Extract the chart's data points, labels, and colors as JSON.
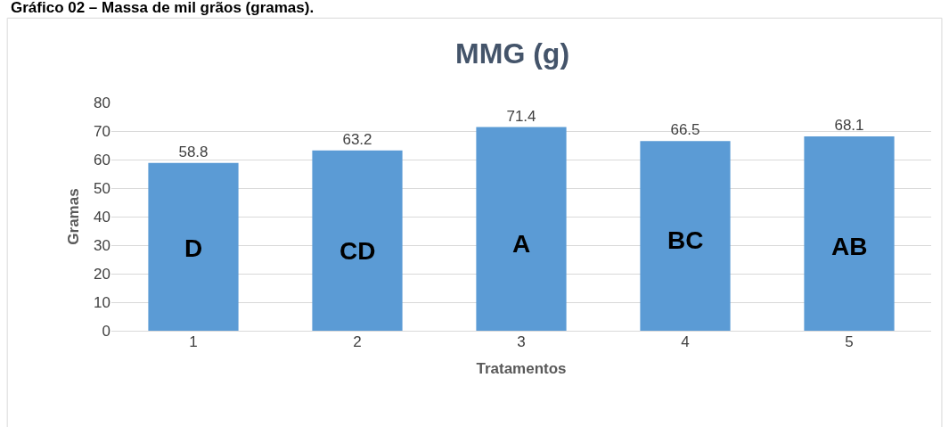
{
  "chart_data": {
    "type": "bar",
    "title": "MMG (g)",
    "xlabel": "Tratamentos",
    "ylabel": "Gramas",
    "categories": [
      "1",
      "2",
      "3",
      "4",
      "5"
    ],
    "values": [
      58.8,
      63.2,
      71.4,
      66.5,
      68.1
    ],
    "color": "#5b9bd5",
    "ylim": [
      0,
      80
    ],
    "yticks": [
      0,
      10,
      20,
      30,
      40,
      50,
      60,
      70,
      80
    ],
    "grid": "y",
    "data_labels": true,
    "annotations": [
      "Gráfico 02 – Massa de mil grãos (gramas).",
      "D",
      "CD",
      "A",
      "BC",
      "AB"
    ]
  }
}
